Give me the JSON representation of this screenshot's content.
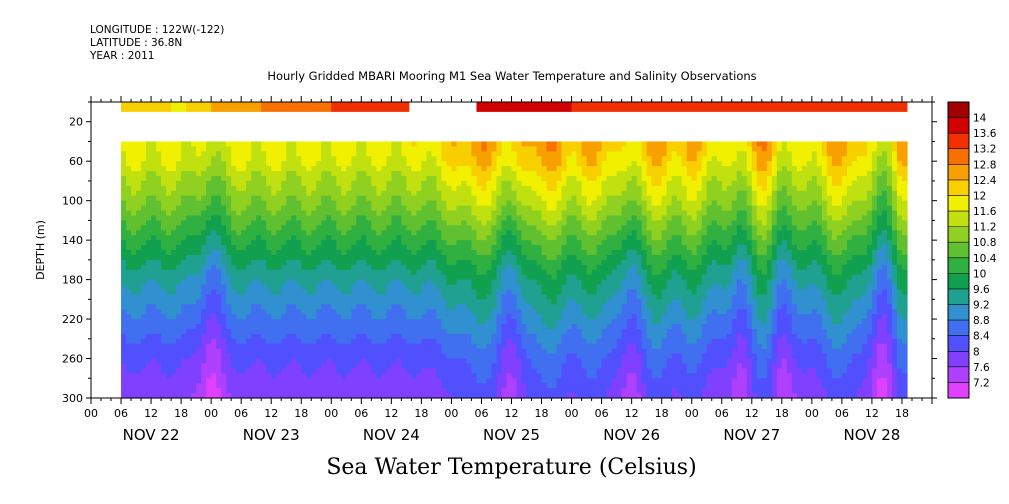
{
  "meta": {
    "longitude": "LONGITUDE : 122W(-122)",
    "latitude": "LATITUDE : 36.8N",
    "year": "YEAR : 2011"
  },
  "chart_data": {
    "type": "heatmap",
    "title": "Hourly Gridded MBARI Mooring M1 Sea Water Temperature and Salinity Observations",
    "colorbar_title": "Sea Water Temperature (Celsius)",
    "ylabel": "DEPTH (m)",
    "y_inverted": true,
    "ylim": [
      300,
      0
    ],
    "y_ticks": [
      20,
      60,
      100,
      140,
      180,
      220,
      260,
      300
    ],
    "x_hour_ticks": [
      "00",
      "06",
      "12",
      "18",
      "00",
      "06",
      "12",
      "18",
      "00",
      "06",
      "12",
      "18",
      "00",
      "06",
      "12",
      "18",
      "00",
      "06",
      "12",
      "18",
      "00",
      "06",
      "12",
      "18",
      "00",
      "06",
      "12",
      "18"
    ],
    "x_day_labels": [
      "NOV 22",
      "NOV 23",
      "NOV 24",
      "NOV 25",
      "NOV 26",
      "NOV 27",
      "NOV 28"
    ],
    "x_range_hours": [
      0,
      168
    ],
    "data_range_hours": [
      6,
      163
    ],
    "surface_layer": {
      "depth_top": 0,
      "depth_bottom": 10,
      "gap_hours": [
        63.5,
        77
      ],
      "samples": [
        {
          "h": 6,
          "t": 12.3
        },
        {
          "h": 12,
          "t": 12.2
        },
        {
          "h": 18,
          "t": 11.9
        },
        {
          "h": 24,
          "t": 12.4
        },
        {
          "h": 30,
          "t": 12.6
        },
        {
          "h": 36,
          "t": 12.9
        },
        {
          "h": 42,
          "t": 13.0
        },
        {
          "h": 48,
          "t": 13.2
        },
        {
          "h": 54,
          "t": 13.3
        },
        {
          "h": 60,
          "t": 13.4
        },
        {
          "h": 63.5,
          "t": 13.4
        },
        {
          "h": 77,
          "t": 14.0
        },
        {
          "h": 84,
          "t": 13.8
        },
        {
          "h": 96,
          "t": 13.6
        },
        {
          "h": 120,
          "t": 13.5
        },
        {
          "h": 144,
          "t": 13.4
        },
        {
          "h": 163,
          "t": 13.3
        }
      ]
    },
    "profile_depths": [
      40,
      60,
      80,
      100,
      120,
      140,
      160,
      180,
      200,
      220,
      240,
      260,
      280,
      300
    ],
    "base_profile": [
      11.8,
      11.6,
      11.2,
      10.9,
      10.5,
      10.1,
      9.7,
      9.3,
      9.0,
      8.7,
      8.4,
      8.1,
      7.9,
      7.7
    ],
    "warm_events": [
      {
        "center_hour": 78,
        "width_hours": 14,
        "amplitude": 0.9
      },
      {
        "center_hour": 91,
        "width_hours": 10,
        "amplitude": 1.0
      },
      {
        "center_hour": 101,
        "width_hours": 8,
        "amplitude": 0.8
      },
      {
        "center_hour": 112,
        "width_hours": 8,
        "amplitude": 0.9
      },
      {
        "center_hour": 120,
        "width_hours": 7,
        "amplitude": 0.7
      },
      {
        "center_hour": 134,
        "width_hours": 8,
        "amplitude": 1.0
      },
      {
        "center_hour": 150,
        "width_hours": 8,
        "amplitude": 0.9
      },
      {
        "center_hour": 162,
        "width_hours": 4,
        "amplitude": 0.8
      }
    ],
    "cold_events": [
      {
        "center_hour": 24,
        "width_hours": 5,
        "amplitude": 0.8
      },
      {
        "center_hour": 84,
        "width_hours": 5,
        "amplitude": 0.7
      },
      {
        "center_hour": 108,
        "width_hours": 5,
        "amplitude": 0.6
      },
      {
        "center_hour": 130,
        "width_hours": 5,
        "amplitude": 0.6
      },
      {
        "center_hour": 138,
        "width_hours": 5,
        "amplitude": 0.6
      },
      {
        "center_hour": 158,
        "width_hours": 5,
        "amplitude": 0.7
      }
    ],
    "colorbar": {
      "levels": [
        7.2,
        7.6,
        8,
        8.4,
        8.8,
        9.2,
        9.6,
        10,
        10.4,
        10.8,
        11.2,
        11.6,
        12,
        12.4,
        12.8,
        13.2,
        13.6,
        14
      ],
      "label_levels": [
        "7.2",
        "7.6",
        "8",
        "8.4",
        "8.8",
        "9.2",
        "9.6",
        "10",
        "10.4",
        "10.8",
        "11.2",
        "11.6",
        "12",
        "12.4",
        "12.8",
        "13.2",
        "13.6",
        "14"
      ],
      "colors": [
        "#e040ff",
        "#b040ff",
        "#8040ff",
        "#5050ff",
        "#4070f0",
        "#3090d0",
        "#20a090",
        "#10a050",
        "#30b040",
        "#60c030",
        "#90d020",
        "#c0e010",
        "#f0f000",
        "#f8d000",
        "#f8a000",
        "#f87000",
        "#f03000",
        "#d00000",
        "#a00000"
      ]
    }
  }
}
